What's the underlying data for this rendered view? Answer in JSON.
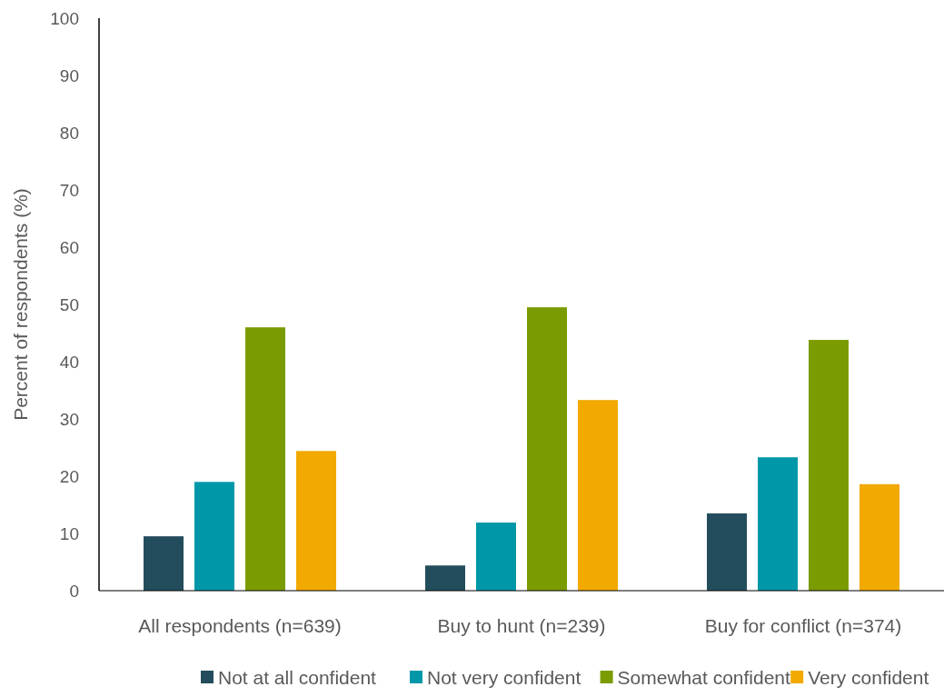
{
  "chart_data": {
    "type": "bar",
    "ylabel": "Percent of respondents (%)",
    "categories": [
      "All respondents (n=639)",
      "Buy to hunt (n=239)",
      "Buy for conflict (n=374)"
    ],
    "series": [
      {
        "name": "Not at all confident",
        "color": "#234d5c",
        "values": [
          9.5,
          4.4,
          13.5
        ]
      },
      {
        "name": "Not very confident",
        "color": "#0098a8",
        "values": [
          19,
          11.9,
          23.3
        ]
      },
      {
        "name": "Somewhat confident",
        "color": "#7a9c00",
        "values": [
          46,
          49.5,
          43.8
        ]
      },
      {
        "name": "Very confident",
        "color": "#f2a900",
        "values": [
          24.4,
          33.3,
          18.6
        ]
      }
    ],
    "ylim": [
      0,
      100
    ],
    "yticks": [
      0,
      10,
      20,
      30,
      40,
      50,
      60,
      70,
      80,
      90,
      100
    ],
    "grid": false,
    "legend": "bottom"
  }
}
